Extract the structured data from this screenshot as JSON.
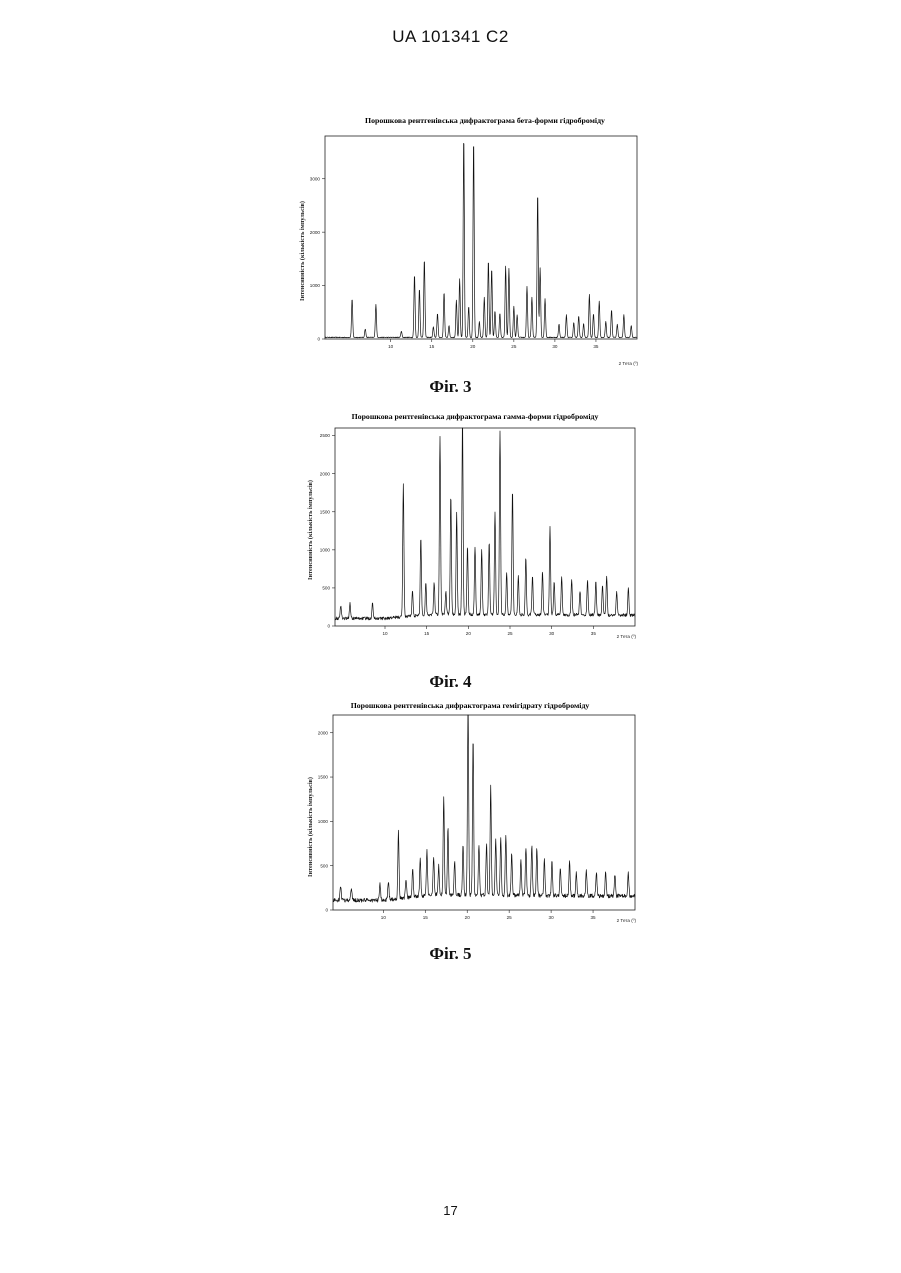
{
  "header": {
    "doc_id": "UA   101341   C2"
  },
  "footer": {
    "page_number": "17"
  },
  "figures": [
    {
      "caption": "Фіг. 3"
    },
    {
      "caption": "Фіг. 4"
    },
    {
      "caption": "Фіг. 5"
    }
  ],
  "chart_data": [
    {
      "type": "line",
      "title": "Порошкова рентгенівська дифрактограма бета-форми гідроброміду",
      "xlabel": "2 Тета (º)",
      "ylabel": "Інтенсивність (кількість імпульсів)",
      "xlim": [
        2,
        40
      ],
      "ylim": [
        0,
        3800
      ],
      "xticks": [
        10,
        15,
        20,
        25,
        30,
        35
      ],
      "yticks": [
        0,
        1000,
        2000,
        3000
      ],
      "baseline": 30,
      "noise": 15,
      "peaks": [
        [
          5.3,
          720
        ],
        [
          6.9,
          160
        ],
        [
          8.2,
          620
        ],
        [
          11.3,
          120
        ],
        [
          12.9,
          1180
        ],
        [
          13.5,
          920
        ],
        [
          14.1,
          1470
        ],
        [
          15.2,
          200
        ],
        [
          15.7,
          450
        ],
        [
          16.5,
          850
        ],
        [
          17.1,
          220
        ],
        [
          18.0,
          700
        ],
        [
          18.4,
          1100
        ],
        [
          18.9,
          3780
        ],
        [
          19.5,
          580
        ],
        [
          20.1,
          3720
        ],
        [
          20.8,
          300
        ],
        [
          21.4,
          750
        ],
        [
          21.9,
          1450
        ],
        [
          22.3,
          1300
        ],
        [
          22.7,
          500
        ],
        [
          23.3,
          450
        ],
        [
          24.0,
          1330
        ],
        [
          24.4,
          1290
        ],
        [
          25.0,
          580
        ],
        [
          25.4,
          420
        ],
        [
          26.6,
          950
        ],
        [
          27.2,
          760
        ],
        [
          27.9,
          2720
        ],
        [
          28.2,
          1300
        ],
        [
          28.8,
          730
        ],
        [
          30.5,
          250
        ],
        [
          31.4,
          420
        ],
        [
          32.3,
          280
        ],
        [
          32.9,
          400
        ],
        [
          33.5,
          260
        ],
        [
          34.2,
          800
        ],
        [
          34.7,
          450
        ],
        [
          35.4,
          680
        ],
        [
          36.2,
          300
        ],
        [
          36.9,
          520
        ],
        [
          37.6,
          250
        ],
        [
          38.4,
          420
        ],
        [
          39.3,
          220
        ]
      ]
    },
    {
      "type": "line",
      "title": "Порошкова рентгенівська дифрактограма гамма-форми гідроброміду",
      "xlabel": "2 Тета (º)",
      "ylabel": "Інтенсивність (кількість імпульсів)",
      "xlim": [
        4,
        40
      ],
      "ylim": [
        0,
        2600
      ],
      "xticks": [
        10,
        15,
        20,
        25,
        30,
        35
      ],
      "yticks": [
        0,
        500,
        1000,
        1500,
        2000,
        2500
      ],
      "yticklabels": [
        "0",
        "500",
        "1000",
        "1500",
        "2000",
        "2500"
      ],
      "baseline": 100,
      "noise": 40,
      "peaks": [
        [
          4.7,
          180
        ],
        [
          5.8,
          200
        ],
        [
          8.5,
          220
        ],
        [
          12.2,
          1750
        ],
        [
          13.3,
          330
        ],
        [
          14.3,
          1030
        ],
        [
          14.9,
          420
        ],
        [
          15.9,
          420
        ],
        [
          16.6,
          2330
        ],
        [
          17.3,
          300
        ],
        [
          17.9,
          1560
        ],
        [
          18.6,
          1320
        ],
        [
          19.3,
          2560
        ],
        [
          19.9,
          900
        ],
        [
          20.8,
          900
        ],
        [
          21.6,
          850
        ],
        [
          22.5,
          950
        ],
        [
          23.2,
          1350
        ],
        [
          23.8,
          2420
        ],
        [
          24.6,
          550
        ],
        [
          25.3,
          1660
        ],
        [
          26.0,
          500
        ],
        [
          26.9,
          750
        ],
        [
          27.7,
          500
        ],
        [
          28.9,
          560
        ],
        [
          29.8,
          1150
        ],
        [
          30.3,
          420
        ],
        [
          31.2,
          500
        ],
        [
          32.4,
          470
        ],
        [
          33.4,
          320
        ],
        [
          34.3,
          450
        ],
        [
          35.3,
          450
        ],
        [
          36.1,
          400
        ],
        [
          36.6,
          520
        ],
        [
          37.8,
          320
        ],
        [
          39.2,
          350
        ]
      ]
    },
    {
      "type": "line",
      "title": "Порошкова рентгенівська дифрактограма гемігідрату гідроброміду",
      "xlabel": "2 Тета (º)",
      "ylabel": "Інтенсивність (кількість імпульсів)",
      "xlim": [
        4,
        40
      ],
      "ylim": [
        0,
        2200
      ],
      "xticks": [
        10,
        15,
        20,
        25,
        30,
        35
      ],
      "yticks": [
        0,
        500,
        1000,
        1500,
        2000
      ],
      "baseline": 110,
      "noise": 45,
      "peaks": [
        [
          4.9,
          170
        ],
        [
          6.2,
          140
        ],
        [
          9.6,
          180
        ],
        [
          10.6,
          200
        ],
        [
          11.8,
          760
        ],
        [
          12.7,
          220
        ],
        [
          13.5,
          330
        ],
        [
          14.4,
          440
        ],
        [
          15.2,
          500
        ],
        [
          16.0,
          440
        ],
        [
          16.6,
          330
        ],
        [
          17.2,
          1100
        ],
        [
          17.7,
          760
        ],
        [
          18.5,
          380
        ],
        [
          19.5,
          560
        ],
        [
          20.1,
          2190
        ],
        [
          20.7,
          1770
        ],
        [
          21.4,
          580
        ],
        [
          22.3,
          580
        ],
        [
          22.8,
          1220
        ],
        [
          23.4,
          640
        ],
        [
          24.0,
          660
        ],
        [
          24.6,
          680
        ],
        [
          25.3,
          480
        ],
        [
          26.4,
          390
        ],
        [
          27.0,
          540
        ],
        [
          27.7,
          570
        ],
        [
          28.3,
          530
        ],
        [
          29.2,
          410
        ],
        [
          30.1,
          380
        ],
        [
          31.1,
          300
        ],
        [
          32.2,
          380
        ],
        [
          33.0,
          270
        ],
        [
          34.2,
          280
        ],
        [
          35.4,
          280
        ],
        [
          36.5,
          290
        ],
        [
          37.6,
          250
        ],
        [
          39.2,
          260
        ]
      ]
    }
  ]
}
